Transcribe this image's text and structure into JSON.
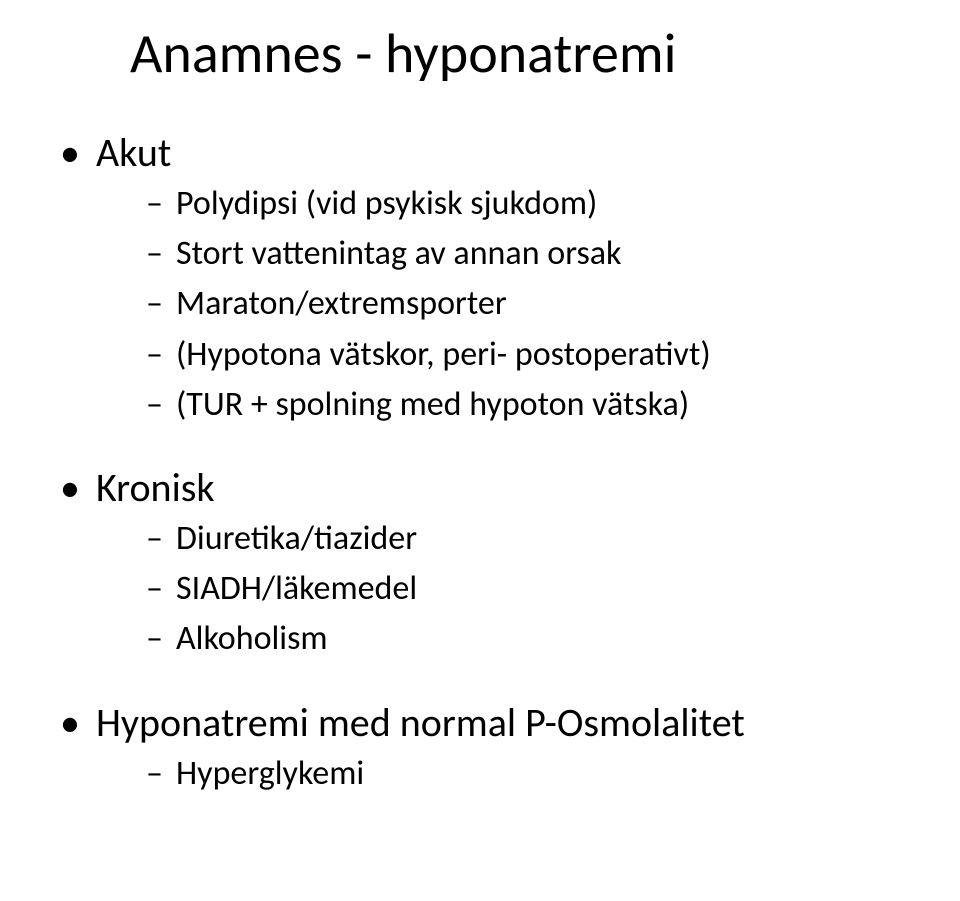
{
  "title": "Anamnes - hyponatremi",
  "sections": [
    {
      "heading": "Akut",
      "items": [
        "Polydipsi (vid psykisk sjukdom)",
        "Stort vattenintag av annan orsak",
        "Maraton/extremsporter",
        "(Hypotona vätskor, peri- postoperativt)",
        "(TUR + spolning med hypoton vätska)"
      ]
    },
    {
      "heading": "Kronisk",
      "items": [
        "Diuretika/tiazider",
        "SIADH/läkemedel",
        "Alkoholism"
      ]
    },
    {
      "heading": "Hyponatremi med normal P-Osmolalitet",
      "items": [
        "Hyperglykemi"
      ]
    }
  ],
  "style": {
    "background_color": "#ffffff",
    "text_color": "#000000",
    "title_fontsize": 56,
    "l1_fontsize": 40,
    "l2_fontsize": 34,
    "font_family": "Calibri"
  }
}
